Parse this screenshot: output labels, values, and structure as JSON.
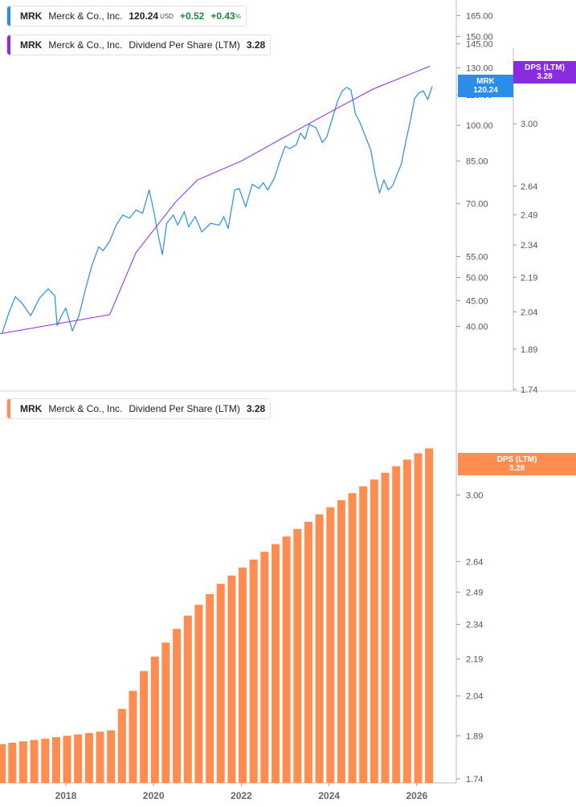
{
  "chart_data": [
    {
      "type": "line",
      "panel": "price",
      "ticker": "MRK",
      "company": "Merck & Co., Inc.",
      "price": "120.24",
      "price_unit": "USD",
      "change": "+0.52",
      "change_pct": "+0.43",
      "pct_sign": "%",
      "overlay_legend": {
        "ticker": "MRK",
        "company": "Merck & Co., Inc.",
        "metric": "Dividend Per Share (LTM)",
        "value": "3.28"
      },
      "price_axis": {
        "scale": "log",
        "ylim": [
          33.5,
          172
        ],
        "ticks": [
          "165.00",
          "150.00",
          "145.00",
          "130.00",
          "115.00",
          "100.00",
          "85.00",
          "70.00",
          "55.00",
          "50.00",
          "45.00",
          "40.00"
        ]
      },
      "dps_axis": {
        "scale": "log",
        "ylim": [
          1.74,
          3.48
        ],
        "ticks": [
          "3.00",
          "2.64",
          "2.49",
          "2.34",
          "2.19",
          "2.04",
          "1.89",
          "1.74"
        ]
      },
      "price_badge": {
        "label": "MRK",
        "value": "120.24"
      },
      "dps_badge": {
        "label": "DPS (LTM)",
        "value": "3.28"
      },
      "xlim": [
        2016.5,
        2026.9
      ],
      "series": [
        {
          "name": "MRK",
          "color": "#2b8de8",
          "points": [
            [
              2016.55,
              38.8
            ],
            [
              2016.7,
              42.5
            ],
            [
              2016.85,
              45.8
            ],
            [
              2017.0,
              44.5
            ],
            [
              2017.2,
              42.0
            ],
            [
              2017.4,
              45.5
            ],
            [
              2017.6,
              47.5
            ],
            [
              2017.75,
              46.0
            ],
            [
              2017.8,
              40.2
            ],
            [
              2017.9,
              42.0
            ],
            [
              2018.0,
              43.5
            ],
            [
              2018.15,
              39.2
            ],
            [
              2018.3,
              42.0
            ],
            [
              2018.45,
              47.5
            ],
            [
              2018.6,
              53.0
            ],
            [
              2018.75,
              57.5
            ],
            [
              2018.85,
              56.5
            ],
            [
              2019.0,
              59.0
            ],
            [
              2019.15,
              63.5
            ],
            [
              2019.3,
              66.5
            ],
            [
              2019.45,
              65.5
            ],
            [
              2019.6,
              68.0
            ],
            [
              2019.75,
              67.0
            ],
            [
              2019.9,
              74.5
            ],
            [
              2020.0,
              68.0
            ],
            [
              2020.1,
              61.0
            ],
            [
              2020.2,
              55.5
            ],
            [
              2020.3,
              64.0
            ],
            [
              2020.45,
              66.5
            ],
            [
              2020.55,
              63.5
            ],
            [
              2020.7,
              67.5
            ],
            [
              2020.8,
              63.0
            ],
            [
              2020.95,
              66.0
            ],
            [
              2021.1,
              61.5
            ],
            [
              2021.3,
              64.0
            ],
            [
              2021.5,
              63.5
            ],
            [
              2021.6,
              66.0
            ],
            [
              2021.7,
              62.5
            ],
            [
              2021.85,
              74.5
            ],
            [
              2021.95,
              75.0
            ],
            [
              2022.1,
              69.0
            ],
            [
              2022.25,
              76.5
            ],
            [
              2022.4,
              75.0
            ],
            [
              2022.5,
              77.0
            ],
            [
              2022.6,
              74.5
            ],
            [
              2022.75,
              78.5
            ],
            [
              2022.9,
              86.0
            ],
            [
              2023.0,
              91.0
            ],
            [
              2023.1,
              90.0
            ],
            [
              2023.25,
              91.5
            ],
            [
              2023.35,
              96.5
            ],
            [
              2023.45,
              94.0
            ],
            [
              2023.55,
              100.5
            ],
            [
              2023.7,
              99.0
            ],
            [
              2023.85,
              92.5
            ],
            [
              2023.95,
              95.0
            ],
            [
              2024.05,
              101.5
            ],
            [
              2024.2,
              112.0
            ],
            [
              2024.3,
              117.0
            ],
            [
              2024.4,
              119.0
            ],
            [
              2024.5,
              117.5
            ],
            [
              2024.6,
              105.5
            ],
            [
              2024.7,
              101.5
            ],
            [
              2024.8,
              96.5
            ],
            [
              2024.95,
              89.5
            ],
            [
              2025.05,
              80.0
            ],
            [
              2025.15,
              73.5
            ],
            [
              2025.25,
              78.0
            ],
            [
              2025.35,
              74.5
            ],
            [
              2025.45,
              76.0
            ],
            [
              2025.55,
              80.0
            ],
            [
              2025.65,
              84.0
            ],
            [
              2025.75,
              93.0
            ],
            [
              2025.85,
              102.0
            ],
            [
              2025.95,
              113.0
            ],
            [
              2026.05,
              116.0
            ],
            [
              2026.15,
              117.0
            ],
            [
              2026.25,
              112.5
            ],
            [
              2026.35,
              119.5
            ]
          ]
        },
        {
          "name": "Dividend Per Share (LTM)",
          "color": "#8a2be2",
          "points": [
            [
              2016.5,
              38.7
            ],
            [
              2019.0,
              42.2
            ],
            [
              2019.6,
              56.0
            ],
            [
              2020.5,
              70.5
            ],
            [
              2021.0,
              78.0
            ],
            [
              2022.0,
              85.0
            ],
            [
              2023.0,
              95.0
            ],
            [
              2024.0,
              106.0
            ],
            [
              2025.0,
              118.0
            ],
            [
              2026.3,
              131.0
            ]
          ]
        }
      ]
    },
    {
      "type": "bar",
      "panel": "dividend",
      "ticker": "MRK",
      "company": "Merck & Co., Inc.",
      "metric": "Dividend Per Share (LTM)",
      "value": "3.28",
      "color": "#ff8c50",
      "scale": "log",
      "ylim": [
        1.74,
        3.48
      ],
      "y_ticks": [
        "3.00",
        "2.64",
        "2.49",
        "2.34",
        "2.19",
        "2.04",
        "1.89",
        "1.74"
      ],
      "x_ticks": [
        "2018",
        "2020",
        "2022",
        "2024",
        "2026"
      ],
      "xlim": [
        2016.5,
        2026.9
      ],
      "badge": {
        "label": "DPS (LTM)",
        "value": "3.28"
      },
      "bars": [
        [
          2016.54,
          1.86
        ],
        [
          2016.78,
          1.865
        ],
        [
          2017.03,
          1.87
        ],
        [
          2017.28,
          1.875
        ],
        [
          2017.53,
          1.88
        ],
        [
          2017.78,
          1.885
        ],
        [
          2018.03,
          1.89
        ],
        [
          2018.28,
          1.895
        ],
        [
          2018.53,
          1.9
        ],
        [
          2018.78,
          1.905
        ],
        [
          2019.03,
          1.91
        ],
        [
          2019.28,
          1.99
        ],
        [
          2019.53,
          2.06
        ],
        [
          2019.78,
          2.14
        ],
        [
          2020.03,
          2.2
        ],
        [
          2020.28,
          2.26
        ],
        [
          2020.53,
          2.32
        ],
        [
          2020.78,
          2.38
        ],
        [
          2021.03,
          2.43
        ],
        [
          2021.28,
          2.48
        ],
        [
          2021.53,
          2.53
        ],
        [
          2021.78,
          2.57
        ],
        [
          2022.03,
          2.61
        ],
        [
          2022.28,
          2.65
        ],
        [
          2022.53,
          2.69
        ],
        [
          2022.78,
          2.73
        ],
        [
          2023.03,
          2.77
        ],
        [
          2023.28,
          2.81
        ],
        [
          2023.53,
          2.85
        ],
        [
          2023.78,
          2.89
        ],
        [
          2024.03,
          2.93
        ],
        [
          2024.28,
          2.97
        ],
        [
          2024.53,
          3.01
        ],
        [
          2024.78,
          3.05
        ],
        [
          2025.03,
          3.09
        ],
        [
          2025.28,
          3.13
        ],
        [
          2025.53,
          3.17
        ],
        [
          2025.78,
          3.21
        ],
        [
          2026.03,
          3.25
        ],
        [
          2026.28,
          3.28
        ]
      ]
    }
  ]
}
